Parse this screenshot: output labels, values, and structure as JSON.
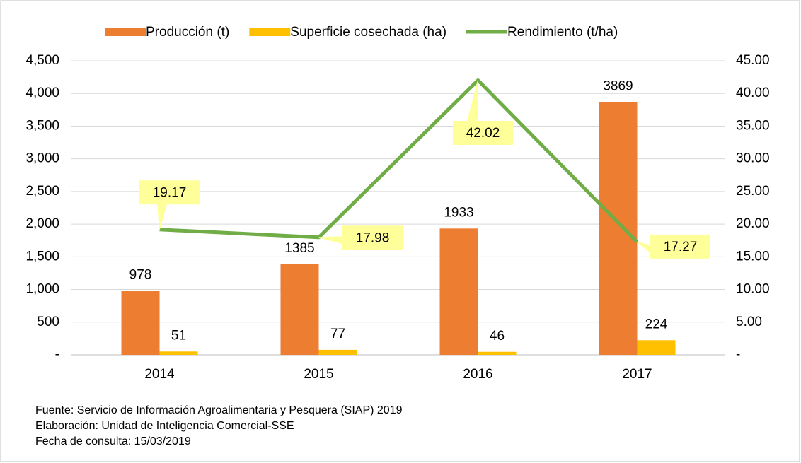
{
  "chart_data": {
    "type": "bar",
    "categories": [
      "2014",
      "2015",
      "2016",
      "2017"
    ],
    "series": [
      {
        "name": "Producción (t)",
        "color": "#ed7d31",
        "type": "bar",
        "values": [
          978,
          1385,
          1933,
          3869
        ]
      },
      {
        "name": "Superficie cosechada (ha)",
        "color": "#ffc000",
        "type": "bar",
        "values": [
          51,
          77,
          46,
          224
        ]
      },
      {
        "name": "Rendimiento (t/ha)",
        "color": "#70ad47",
        "type": "line",
        "axis": "y2",
        "values": [
          19.17,
          17.98,
          42.02,
          17.27
        ]
      }
    ],
    "ylim": [
      0,
      4500
    ],
    "yticks": [
      {
        "value": 0,
        "label": "-"
      },
      500,
      {
        "value": 1000,
        "label": "1,000"
      },
      {
        "value": 1500,
        "label": "1,500"
      },
      {
        "value": 2000,
        "label": "2,000"
      },
      {
        "value": 2500,
        "label": "2,500"
      },
      {
        "value": 3000,
        "label": "3,000"
      },
      {
        "value": 3500,
        "label": "3,500"
      },
      {
        "value": 4000,
        "label": "4,000"
      },
      {
        "value": 4500,
        "label": "4,500"
      }
    ],
    "y2lim": [
      0,
      45
    ],
    "y2ticks": [
      {
        "value": 0,
        "label": "-"
      },
      {
        "value": 5,
        "label": "5.00"
      },
      {
        "value": 10,
        "label": "10.00"
      },
      {
        "value": 15,
        "label": "15.00"
      },
      {
        "value": 20,
        "label": "20.00"
      },
      {
        "value": 25,
        "label": "25.00"
      },
      {
        "value": 30,
        "label": "30.00"
      },
      {
        "value": 35,
        "label": "35.00"
      },
      {
        "value": 40,
        "label": "40.00"
      },
      {
        "value": 45,
        "label": "45.00"
      }
    ],
    "grid": true,
    "legend": "top",
    "notes": [
      "Fuente: Servicio de Información Agroalimentaria y Pesquera (SIAP) 2019",
      "Elaboración: Unidad de Inteligencia Comercial-SSE",
      "Fecha de consulta: 15/03/2019"
    ]
  }
}
